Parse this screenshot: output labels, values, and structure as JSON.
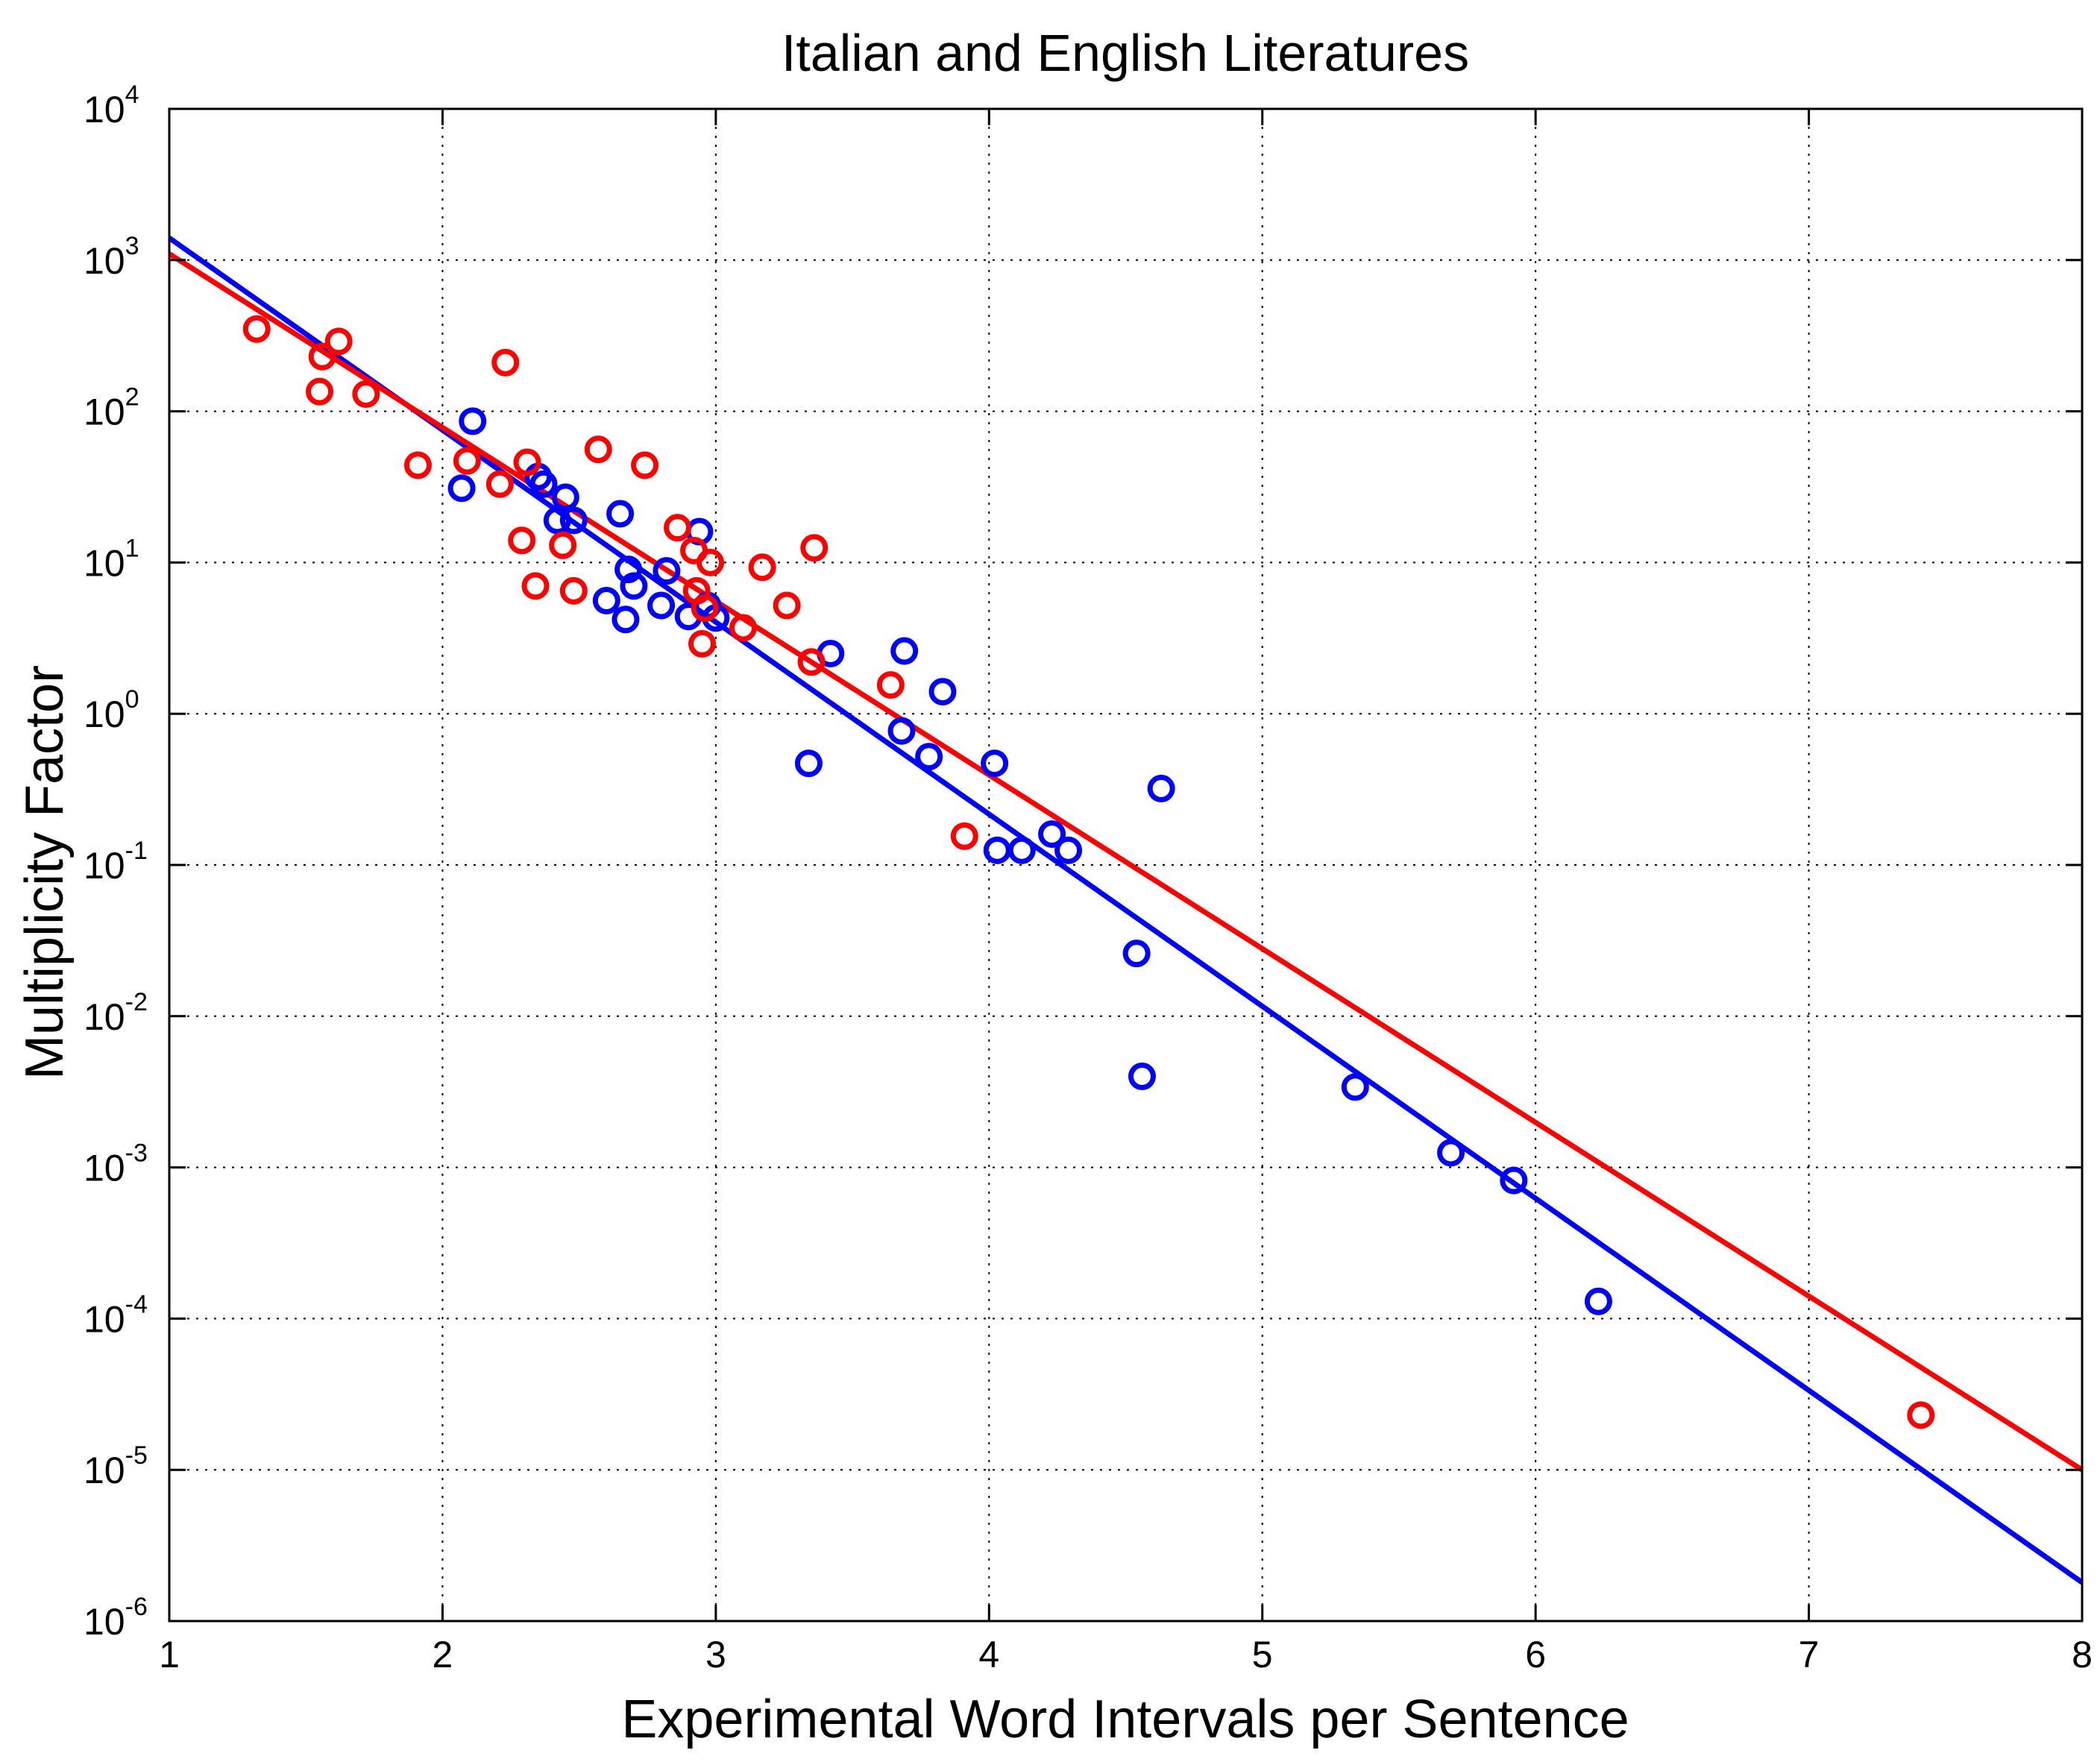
{
  "chart_data": {
    "type": "scatter",
    "title": "Italian and English Literatures",
    "xlabel": "Experimental Word Intervals per Sentence",
    "ylabel": "Multiplicity Factor",
    "xlim": [
      1,
      8
    ],
    "ylim": [
      1e-06,
      10000.0
    ],
    "yscale": "log",
    "grid": true,
    "x_ticks": [
      "1",
      "2",
      "3",
      "4",
      "5",
      "6",
      "7",
      "8"
    ],
    "y_ticks": [
      {
        "base": "10",
        "exp": "-6",
        "value": 1e-06
      },
      {
        "base": "10",
        "exp": "-5",
        "value": 1e-05
      },
      {
        "base": "10",
        "exp": "-4",
        "value": 0.0001
      },
      {
        "base": "10",
        "exp": "-3",
        "value": 0.001
      },
      {
        "base": "10",
        "exp": "-2",
        "value": 0.01
      },
      {
        "base": "10",
        "exp": "-1",
        "value": 0.1
      },
      {
        "base": "10",
        "exp": "0",
        "value": 1
      },
      {
        "base": "10",
        "exp": "1",
        "value": 10
      },
      {
        "base": "10",
        "exp": "2",
        "value": 100
      },
      {
        "base": "10",
        "exp": "3",
        "value": 1000
      },
      {
        "base": "10",
        "exp": "4",
        "value": 10000
      }
    ],
    "series": [
      {
        "color": "#0000ff",
        "points": [
          [
            2.07,
            31
          ],
          [
            2.11,
            86
          ],
          [
            2.35,
            37
          ],
          [
            2.37,
            33
          ],
          [
            2.42,
            19
          ],
          [
            2.45,
            27
          ],
          [
            2.48,
            19
          ],
          [
            2.6,
            5.6
          ],
          [
            2.65,
            21
          ],
          [
            2.67,
            4.2
          ],
          [
            2.68,
            9
          ],
          [
            2.7,
            7
          ],
          [
            2.8,
            5.2
          ],
          [
            2.82,
            8.8
          ],
          [
            2.9,
            4.4
          ],
          [
            2.94,
            16
          ],
          [
            2.97,
            5.2
          ],
          [
            3.0,
            4.3
          ],
          [
            3.34,
            0.47
          ],
          [
            3.42,
            2.5
          ],
          [
            3.68,
            0.77
          ],
          [
            3.69,
            2.6
          ],
          [
            3.78,
            0.52
          ],
          [
            3.83,
            1.4
          ],
          [
            4.02,
            0.47
          ],
          [
            4.03,
            0.125
          ],
          [
            4.12,
            0.125
          ],
          [
            4.23,
            0.16
          ],
          [
            4.29,
            0.125
          ],
          [
            4.54,
            0.026
          ],
          [
            4.56,
            0.004
          ],
          [
            4.63,
            0.32
          ],
          [
            5.34,
            0.0034
          ],
          [
            5.69,
            0.00125
          ],
          [
            5.92,
            0.00082
          ],
          [
            6.23,
            0.00013
          ]
        ],
        "fit": [
          [
            1,
            1400
          ],
          [
            8,
            1.8e-06
          ]
        ]
      },
      {
        "color": "#ff0000",
        "points": [
          [
            1.32,
            350
          ],
          [
            1.55,
            135
          ],
          [
            1.56,
            230
          ],
          [
            1.62,
            290
          ],
          [
            1.72,
            130
          ],
          [
            1.91,
            44
          ],
          [
            2.09,
            47
          ],
          [
            2.21,
            33
          ],
          [
            2.23,
            210
          ],
          [
            2.29,
            14
          ],
          [
            2.31,
            46
          ],
          [
            2.34,
            7
          ],
          [
            2.44,
            13
          ],
          [
            2.48,
            6.5
          ],
          [
            2.57,
            56
          ],
          [
            2.74,
            44
          ],
          [
            2.86,
            17
          ],
          [
            2.92,
            12
          ],
          [
            2.93,
            6.5
          ],
          [
            2.95,
            2.9
          ],
          [
            2.96,
            5
          ],
          [
            2.98,
            10
          ],
          [
            3.1,
            3.7
          ],
          [
            3.17,
            9.3
          ],
          [
            3.26,
            5.2
          ],
          [
            3.35,
            2.2
          ],
          [
            3.36,
            12.5
          ],
          [
            3.64,
            1.55
          ],
          [
            3.91,
            0.155
          ],
          [
            7.41,
            2.3e-05
          ]
        ],
        "fit": [
          [
            1,
            1100
          ],
          [
            8,
            1e-05
          ]
        ]
      }
    ]
  }
}
